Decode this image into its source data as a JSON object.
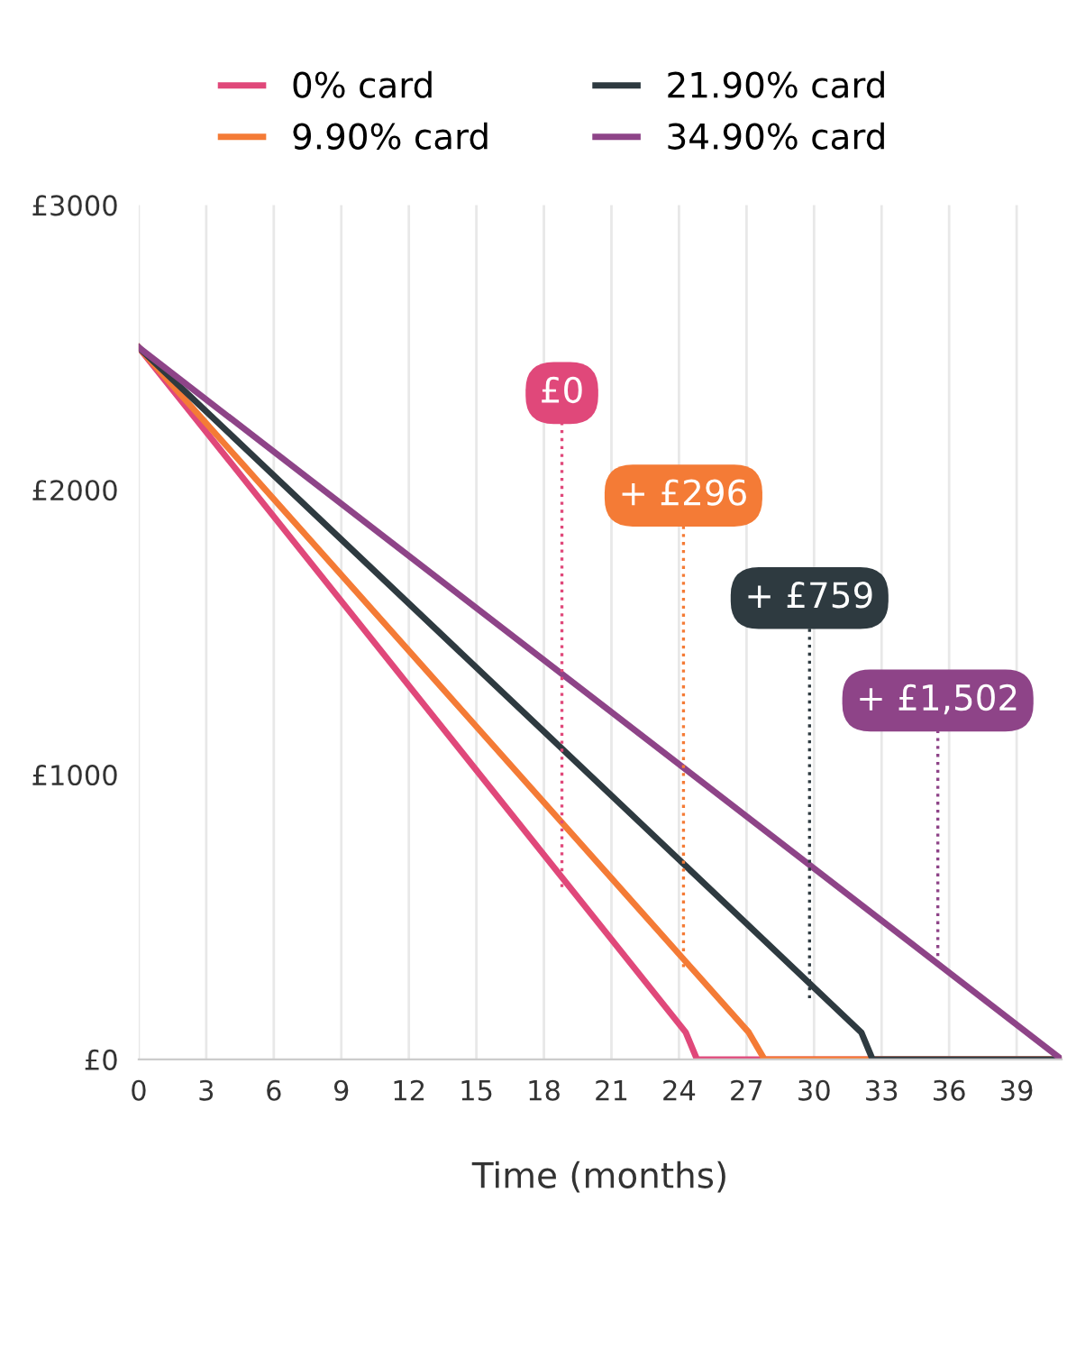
{
  "chart_data": {
    "type": "line",
    "xlabel": "Time (months)",
    "series": [
      {
        "name": "0% card",
        "color": "#e0487a",
        "x": [
          0,
          24.3,
          24.8,
          41
        ],
        "values": [
          2500,
          95,
          0,
          0
        ]
      },
      {
        "name": "9.90% card",
        "color": "#f47b36",
        "x": [
          0,
          27.1,
          27.8,
          41
        ],
        "values": [
          2500,
          95,
          0,
          0
        ]
      },
      {
        "name": "21.90% card",
        "color": "#2e3a40",
        "x": [
          0,
          32.1,
          32.6,
          41
        ],
        "values": [
          2500,
          95,
          0,
          0
        ]
      },
      {
        "name": "34.90% card",
        "color": "#8e4488",
        "x": [
          0,
          41
        ],
        "values": [
          2500,
          0
        ]
      }
    ],
    "xlim": [
      0,
      41
    ],
    "xticks": [
      0,
      3,
      6,
      9,
      12,
      15,
      18,
      21,
      24,
      27,
      30,
      33,
      36,
      39
    ],
    "ylim": [
      0,
      3000
    ],
    "yticks": [
      {
        "value": 0,
        "label": "£0"
      },
      {
        "value": 1000,
        "label": "£1000"
      },
      {
        "value": 2000,
        "label": "£2000"
      },
      {
        "value": 3000,
        "label": "£3000"
      }
    ],
    "annotations": [
      {
        "text": "£0",
        "x": 18.8,
        "y": 605
      },
      {
        "text": "+ £296",
        "x": 24.2,
        "y": 324
      },
      {
        "text": "+ £759",
        "x": 29.8,
        "y": 215
      },
      {
        "text": "+ £1,502",
        "x": 35.5,
        "y": 335
      }
    ],
    "grid": "x",
    "legend": "top",
    "marker": "none",
    "line_style": "solid"
  }
}
